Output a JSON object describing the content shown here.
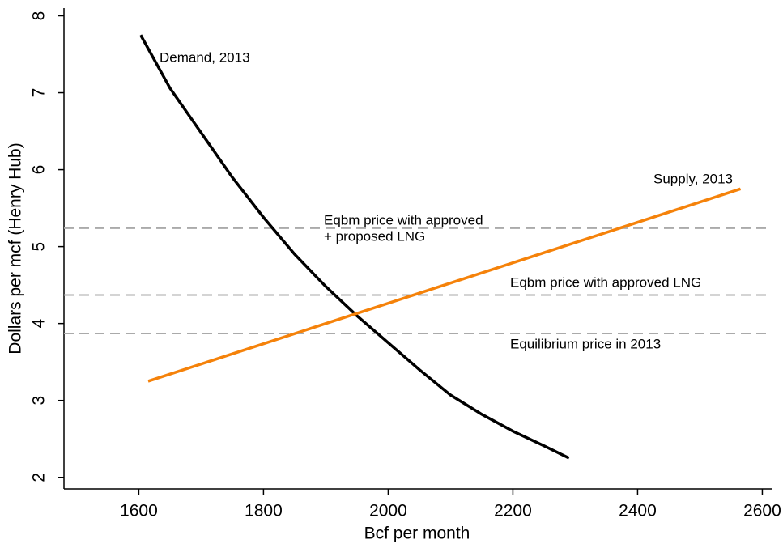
{
  "chart_data": {
    "type": "line",
    "xlabel": "Bcf per month",
    "ylabel": "Dollars per mcf (Henry Hub)",
    "xlim": [
      1480,
      2615
    ],
    "xticks": [
      1600,
      1800,
      2000,
      2200,
      2400,
      2600
    ],
    "ylim": [
      1.85,
      8.1
    ],
    "yticks": [
      2,
      3,
      4,
      5,
      6,
      7,
      8
    ],
    "series": [
      {
        "name": "Demand, 2013",
        "color": "#000000",
        "x": [
          1603,
          1650,
          1700,
          1750,
          1800,
          1850,
          1900,
          1950,
          2000,
          2050,
          2100,
          2150,
          2200,
          2250,
          2290
        ],
        "values": [
          7.75,
          7.06,
          6.48,
          5.9,
          5.38,
          4.9,
          4.48,
          4.1,
          3.75,
          3.4,
          3.07,
          2.82,
          2.6,
          2.41,
          2.25
        ]
      },
      {
        "name": "Supply, 2013",
        "color": "#f5820a",
        "x": [
          1615,
          2565
        ],
        "values": [
          3.25,
          5.75
        ]
      }
    ],
    "hlines": [
      {
        "value": 5.24,
        "label": [
          "Eqbm price with approved",
          "+ proposed LNG"
        ]
      },
      {
        "value": 4.37,
        "label": [
          "Eqbm price with approved LNG"
        ]
      },
      {
        "value": 3.87,
        "label": [
          "Equilibrium price in 2013"
        ]
      }
    ],
    "hline_color": "#aaaaaa"
  }
}
